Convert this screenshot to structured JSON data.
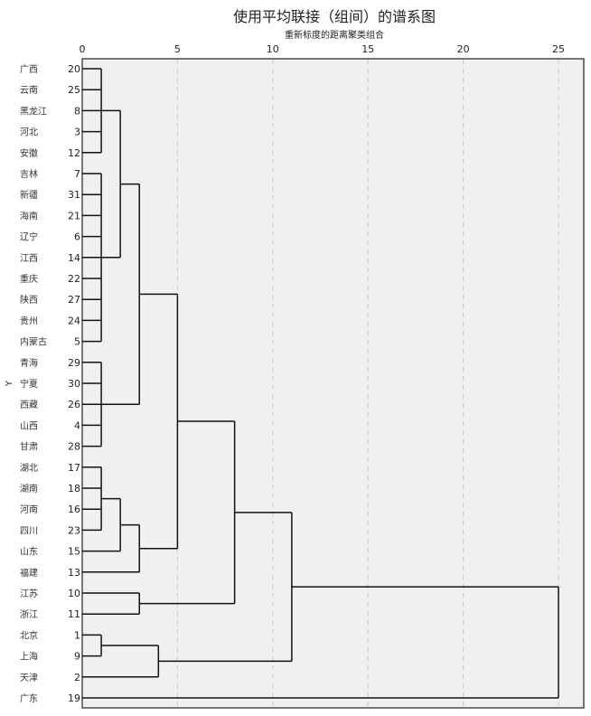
{
  "chart_data": {
    "type": "dendrogram",
    "title": "使用平均联接（组间）的谱系图",
    "xlabel": "重新标度的距离聚类组合",
    "ylabel": "Y",
    "xlim": [
      0,
      25
    ],
    "xticks": [
      0,
      5,
      10,
      15,
      20,
      25
    ],
    "grid": "vertical-dashed",
    "leaves": [
      {
        "label": "广西",
        "case": 20
      },
      {
        "label": "云南",
        "case": 25
      },
      {
        "label": "黑龙江",
        "case": 8
      },
      {
        "label": "河北",
        "case": 3
      },
      {
        "label": "安徽",
        "case": 12
      },
      {
        "label": "吉林",
        "case": 7
      },
      {
        "label": "新疆",
        "case": 31
      },
      {
        "label": "海南",
        "case": 21
      },
      {
        "label": "辽宁",
        "case": 6
      },
      {
        "label": "江西",
        "case": 14
      },
      {
        "label": "重庆",
        "case": 22
      },
      {
        "label": "陕西",
        "case": 27
      },
      {
        "label": "贵州",
        "case": 24
      },
      {
        "label": "内蒙古",
        "case": 5
      },
      {
        "label": "青海",
        "case": 29
      },
      {
        "label": "宁夏",
        "case": 30
      },
      {
        "label": "西藏",
        "case": 26
      },
      {
        "label": "山西",
        "case": 4
      },
      {
        "label": "甘肃",
        "case": 28
      },
      {
        "label": "湖北",
        "case": 17
      },
      {
        "label": "湖南",
        "case": 18
      },
      {
        "label": "河南",
        "case": 16
      },
      {
        "label": "四川",
        "case": 23
      },
      {
        "label": "山东",
        "case": 15
      },
      {
        "label": "福建",
        "case": 13
      },
      {
        "label": "江苏",
        "case": 10
      },
      {
        "label": "浙江",
        "case": 11
      },
      {
        "label": "北京",
        "case": 1
      },
      {
        "label": "上海",
        "case": 9
      },
      {
        "label": "天津",
        "case": 2
      },
      {
        "label": "广东",
        "case": 19
      }
    ],
    "merges": [
      {
        "children": [
          20,
          25,
          8,
          3,
          12
        ],
        "height": 1
      },
      {
        "children": [
          7,
          31,
          21,
          6,
          14,
          22,
          27,
          24,
          5
        ],
        "height": 1
      },
      {
        "children": [
          "m0",
          "m1"
        ],
        "height": 2
      },
      {
        "children": [
          29,
          30,
          26,
          4,
          28
        ],
        "height": 1
      },
      {
        "children": [
          "m2",
          "m3"
        ],
        "height": 3
      },
      {
        "children": [
          17,
          18,
          16,
          23
        ],
        "height": 1
      },
      {
        "children": [
          "m5",
          15
        ],
        "height": 2
      },
      {
        "children": [
          "m6",
          13
        ],
        "height": 3
      },
      {
        "children": [
          "m4",
          "m7"
        ],
        "height": 5
      },
      {
        "children": [
          10,
          11
        ],
        "height": 3
      },
      {
        "children": [
          "m8",
          "m9"
        ],
        "height": 8
      },
      {
        "children": [
          1,
          9
        ],
        "height": 1
      },
      {
        "children": [
          "m11",
          2
        ],
        "height": 4
      },
      {
        "children": [
          "m10",
          "m12"
        ],
        "height": 11
      },
      {
        "children": [
          "m13",
          19
        ],
        "height": 25
      }
    ]
  }
}
